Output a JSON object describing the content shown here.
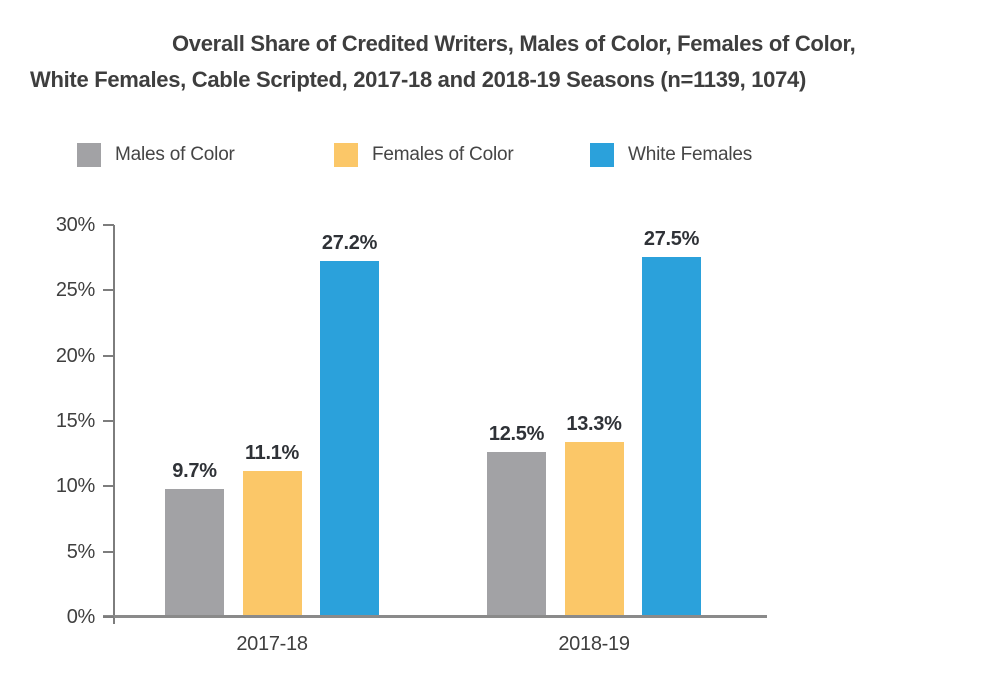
{
  "chart_data": {
    "type": "bar",
    "title": "Overall Share of Credited Writers, Males of Color, Females of Color, White Females, Cable Scripted, 2017-18 and 2018-19 Seasons (n=1139, 1074)",
    "title_lines": [
      "Overall Share of Credited Writers, Males of Color, Females of Color,",
      "White Females, Cable Scripted, 2017-18 and 2018-19 Seasons (n=1139, 1074)"
    ],
    "categories": [
      "2017-18",
      "2018-19"
    ],
    "series": [
      {
        "name": "Males of Color",
        "color": "#A2A2A5",
        "values": [
          9.7,
          12.5
        ]
      },
      {
        "name": "Females of Color",
        "color": "#FBC768",
        "values": [
          11.1,
          13.3
        ]
      },
      {
        "name": "White Females",
        "color": "#2BA1DB",
        "values": [
          27.2,
          27.5
        ]
      }
    ],
    "value_label_suffix": "%",
    "y_ticks": [
      30,
      25,
      20,
      15,
      10,
      5,
      0
    ],
    "y_tick_suffix": "%",
    "ylim": [
      0,
      30
    ],
    "xlabel": "",
    "ylabel": "",
    "grid": "off",
    "legend_position": "top",
    "colors": {
      "title_text": "#3E3E3E",
      "axis_text": "#3F3F3F",
      "value_label_text": "#2F3237",
      "axis_line": "#8A8A8A",
      "tick_line": "#7D7D7D",
      "background": "#FFFFFF"
    }
  }
}
